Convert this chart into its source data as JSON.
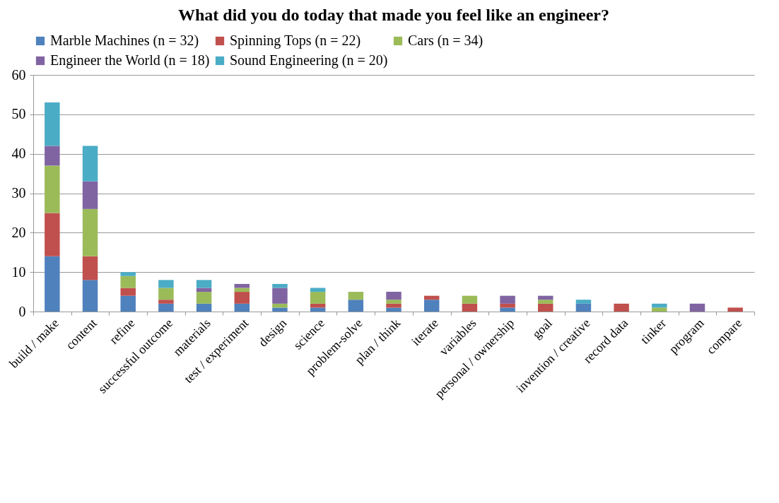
{
  "chart_data": {
    "type": "bar",
    "stacked": true,
    "title": "What did you do today that made you feel like an engineer?",
    "categories": [
      "build / make",
      "content",
      "refine",
      "successful outcome",
      "materials",
      "test / experiment",
      "design",
      "science",
      "problem-solve",
      "plan / think",
      "iterate",
      "variables",
      "personal / ownership",
      "goal",
      "invention / creative",
      "record data",
      "tinker",
      "program",
      "compare"
    ],
    "series": [
      {
        "name": "Marble Machines (n = 32)",
        "color": "#4f81bd",
        "values": [
          14,
          8,
          4,
          2,
          2,
          2,
          1,
          1,
          3,
          1,
          3,
          0,
          1,
          0,
          2,
          0,
          0,
          0,
          0
        ]
      },
      {
        "name": "Spinning Tops (n = 22)",
        "color": "#c0504d",
        "values": [
          11,
          6,
          2,
          1,
          0,
          3,
          0,
          1,
          0,
          1,
          1,
          2,
          1,
          2,
          0,
          2,
          0,
          0,
          1
        ]
      },
      {
        "name": "Cars (n = 34)",
        "color": "#9bbb59",
        "values": [
          12,
          12,
          3,
          3,
          3,
          1,
          1,
          3,
          2,
          1,
          0,
          2,
          0,
          1,
          0,
          0,
          1,
          0,
          0
        ]
      },
      {
        "name": "Engineer the World (n = 18)",
        "color": "#8064a2",
        "values": [
          5,
          7,
          0,
          0,
          1,
          1,
          4,
          0,
          0,
          2,
          0,
          0,
          2,
          1,
          0,
          0,
          0,
          2,
          0
        ]
      },
      {
        "name": "Sound Engineering (n = 20)",
        "color": "#4bacc6",
        "values": [
          11,
          9,
          1,
          2,
          2,
          0,
          1,
          1,
          0,
          0,
          0,
          0,
          0,
          0,
          1,
          0,
          1,
          0,
          0
        ]
      }
    ],
    "ylim": [
      0,
      60
    ],
    "yticks": [
      0,
      10,
      20,
      30,
      40,
      50,
      60
    ],
    "grid": "y",
    "legend": "top left"
  }
}
